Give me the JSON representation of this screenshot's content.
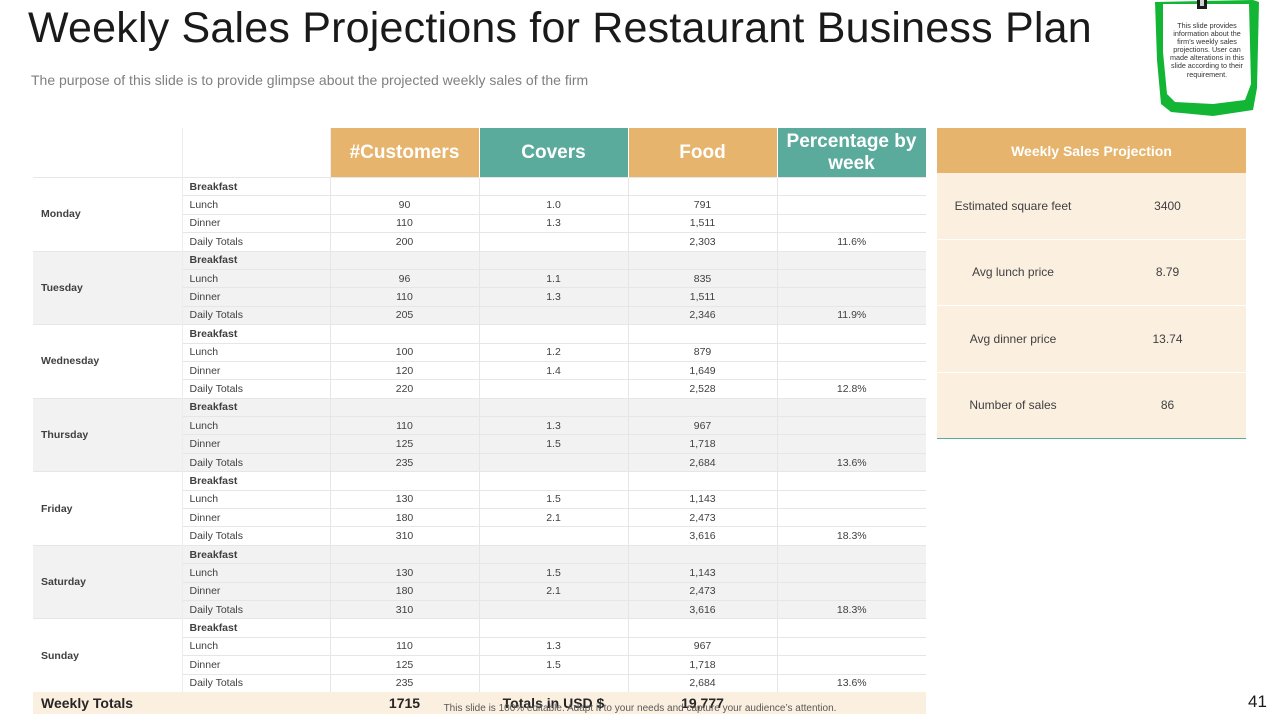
{
  "slide": {
    "title": "Weekly Sales Projections for Restaurant Business Plan",
    "subtitle": "The purpose of this slide is to provide glimpse about the projected weekly sales of the firm",
    "note": "This slide provides information about the firm’s weekly sales projections. User can made alterations in this slide according to their requirement.",
    "footer": "This slide is 100% editable. Adapt it to your needs and capture your audience’s attention.",
    "page_number": "41"
  },
  "colors": {
    "gold": "#e6b46c",
    "teal": "#5bab9d",
    "cream": "#fbefe0",
    "note_green": "#12b534"
  },
  "table": {
    "headers": {
      "customers": "#Customers",
      "covers": "Covers",
      "food": "Food",
      "percentage": "Percentage by week"
    },
    "days": [
      {
        "day": "Monday",
        "rows": [
          {
            "meal": "Breakfast",
            "customers": "",
            "covers": "",
            "food": "",
            "pct": ""
          },
          {
            "meal": "Lunch",
            "customers": "90",
            "covers": "1.0",
            "food": "791",
            "pct": ""
          },
          {
            "meal": "Dinner",
            "customers": "110",
            "covers": "1.3",
            "food": "1,511",
            "pct": ""
          },
          {
            "meal": "Daily Totals",
            "customers": "200",
            "covers": "",
            "food": "2,303",
            "pct": "11.6%"
          }
        ]
      },
      {
        "day": "Tuesday",
        "rows": [
          {
            "meal": "Breakfast",
            "customers": "",
            "covers": "",
            "food": "",
            "pct": ""
          },
          {
            "meal": "Lunch",
            "customers": "96",
            "covers": "1.1",
            "food": "835",
            "pct": ""
          },
          {
            "meal": "Dinner",
            "customers": "110",
            "covers": "1.3",
            "food": "1,511",
            "pct": ""
          },
          {
            "meal": "Daily Totals",
            "customers": "205",
            "covers": "",
            "food": "2,346",
            "pct": "11.9%"
          }
        ]
      },
      {
        "day": "Wednesday",
        "rows": [
          {
            "meal": "Breakfast",
            "customers": "",
            "covers": "",
            "food": "",
            "pct": ""
          },
          {
            "meal": "Lunch",
            "customers": "100",
            "covers": "1.2",
            "food": "879",
            "pct": ""
          },
          {
            "meal": "Dinner",
            "customers": "120",
            "covers": "1.4",
            "food": "1,649",
            "pct": ""
          },
          {
            "meal": "Daily Totals",
            "customers": "220",
            "covers": "",
            "food": "2,528",
            "pct": "12.8%"
          }
        ]
      },
      {
        "day": "Thursday",
        "rows": [
          {
            "meal": "Breakfast",
            "customers": "",
            "covers": "",
            "food": "",
            "pct": ""
          },
          {
            "meal": "Lunch",
            "customers": "110",
            "covers": "1.3",
            "food": "967",
            "pct": ""
          },
          {
            "meal": "Dinner",
            "customers": "125",
            "covers": "1.5",
            "food": "1,718",
            "pct": ""
          },
          {
            "meal": "Daily Totals",
            "customers": "235",
            "covers": "",
            "food": "2,684",
            "pct": "13.6%"
          }
        ]
      },
      {
        "day": "Friday",
        "rows": [
          {
            "meal": "Breakfast",
            "customers": "",
            "covers": "",
            "food": "",
            "pct": ""
          },
          {
            "meal": "Lunch",
            "customers": "130",
            "covers": "1.5",
            "food": "1,143",
            "pct": ""
          },
          {
            "meal": "Dinner",
            "customers": "180",
            "covers": "2.1",
            "food": "2,473",
            "pct": ""
          },
          {
            "meal": "Daily Totals",
            "customers": "310",
            "covers": "",
            "food": "3,616",
            "pct": "18.3%"
          }
        ]
      },
      {
        "day": "Saturday",
        "rows": [
          {
            "meal": "Breakfast",
            "customers": "",
            "covers": "",
            "food": "",
            "pct": ""
          },
          {
            "meal": "Lunch",
            "customers": "130",
            "covers": "1.5",
            "food": "1,143",
            "pct": ""
          },
          {
            "meal": "Dinner",
            "customers": "180",
            "covers": "2.1",
            "food": "2,473",
            "pct": ""
          },
          {
            "meal": "Daily Totals",
            "customers": "310",
            "covers": "",
            "food": "3,616",
            "pct": "18.3%"
          }
        ]
      },
      {
        "day": "Sunday",
        "rows": [
          {
            "meal": "Breakfast",
            "customers": "",
            "covers": "",
            "food": "",
            "pct": ""
          },
          {
            "meal": "Lunch",
            "customers": "110",
            "covers": "1.3",
            "food": "967",
            "pct": ""
          },
          {
            "meal": "Dinner",
            "customers": "125",
            "covers": "1.5",
            "food": "1,718",
            "pct": ""
          },
          {
            "meal": "Daily Totals",
            "customers": "235",
            "covers": "",
            "food": "2,684",
            "pct": "13.6%"
          }
        ]
      }
    ],
    "totals": {
      "label": "Weekly Totals",
      "customers": "1715",
      "usd_label": "Totals in USD $",
      "usd_value": "19,777"
    }
  },
  "projection": {
    "title": "Weekly Sales Projection",
    "rows": [
      {
        "label": "Estimated square feet",
        "value": "3400"
      },
      {
        "label": "Avg  lunch price",
        "value": "8.79"
      },
      {
        "label": "Avg  dinner price",
        "value": "13.74"
      },
      {
        "label": "Number of sales",
        "value": "86"
      }
    ]
  }
}
